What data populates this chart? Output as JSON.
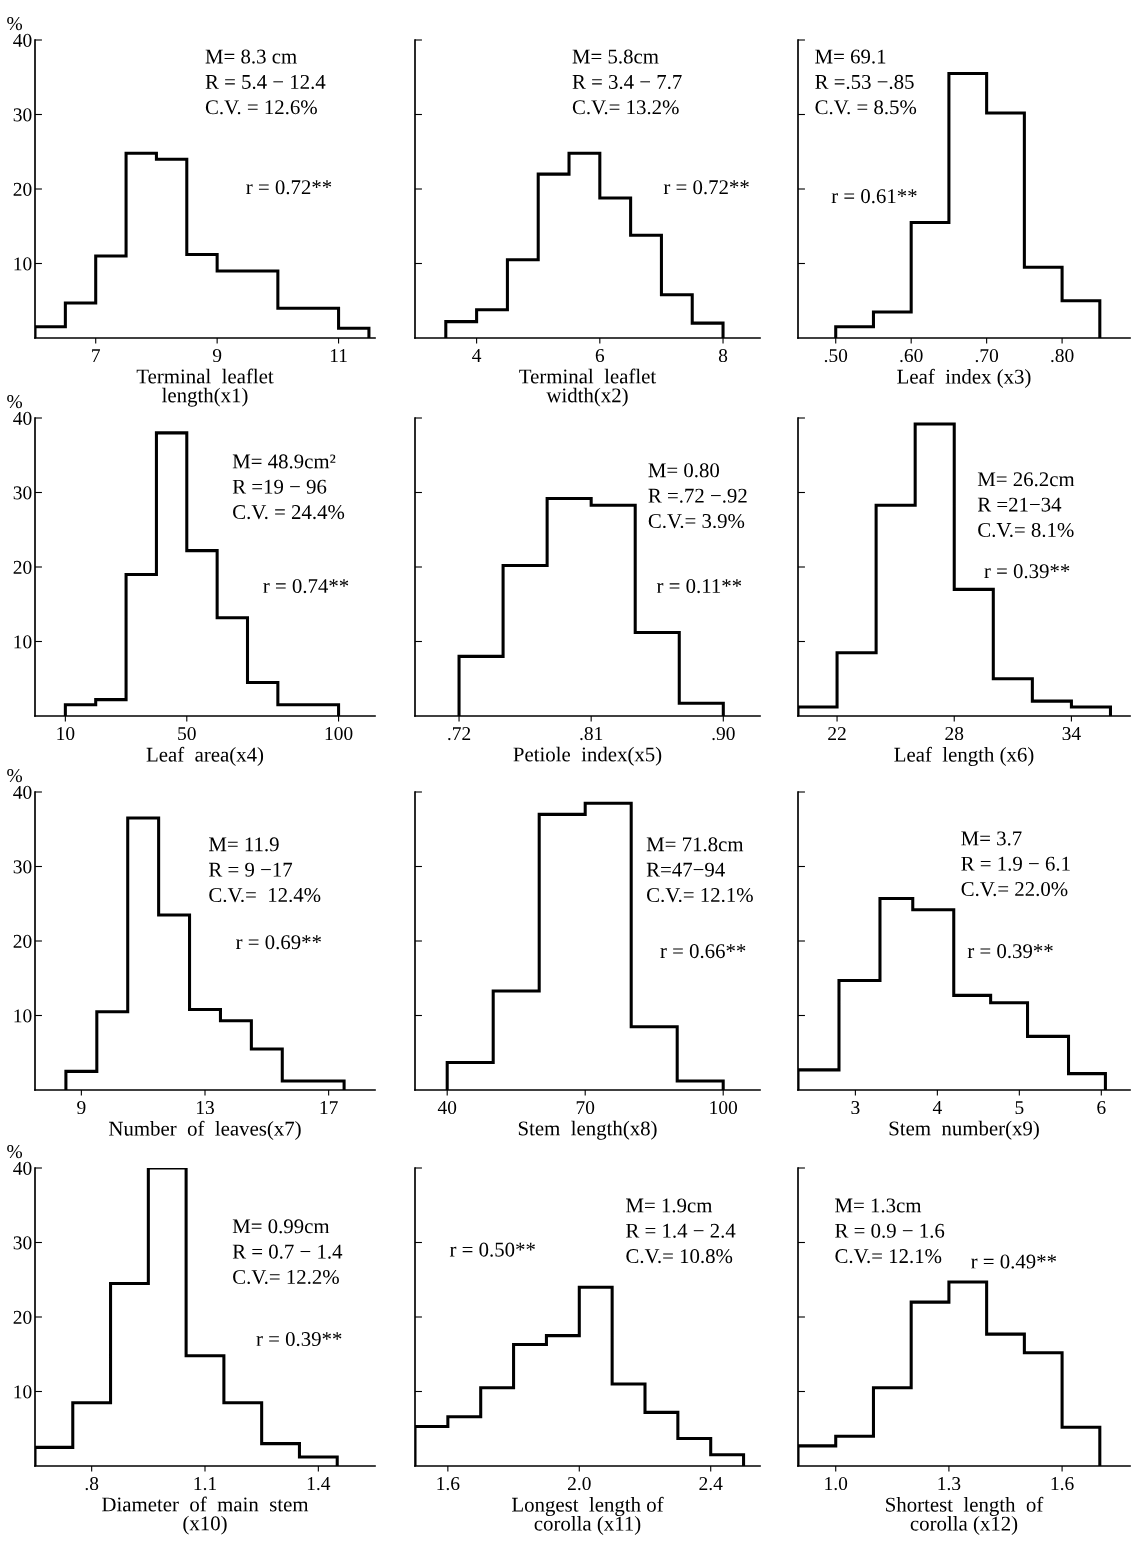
{
  "chart_data": [
    {
      "type": "histogram",
      "xlabel": "Terminal  leaflet\nlength(x1)",
      "ylabel": "%",
      "bins": [
        6,
        6.5,
        7,
        7.5,
        8,
        8.5,
        9,
        10,
        11,
        11.5
      ],
      "values": [
        1.5,
        4.7,
        11,
        24.8,
        24,
        11.2,
        9,
        4,
        1.3
      ],
      "color": "#000000",
      "xlim": [
        6,
        11.6
      ],
      "xticks": [
        7,
        9,
        11
      ],
      "ylim": [
        0,
        40
      ],
      "yticks": [
        10,
        20,
        30,
        40
      ],
      "annotations": [
        "M= 8.3 cm",
        "R = 5.4 − 12.4",
        "C.V. = 12.6%",
        "r = 0.72**"
      ]
    },
    {
      "type": "histogram",
      "xlabel": "Terminal  leaflet\nwidth(x2)",
      "bins": [
        3.5,
        4,
        4.5,
        5,
        5.5,
        6,
        6.5,
        7,
        7.5,
        8
      ],
      "values": [
        2.2,
        3.8,
        10.5,
        22,
        24.8,
        18.8,
        13.8,
        5.8,
        2
      ],
      "color": "#000000",
      "xlim": [
        3,
        8.6
      ],
      "xticks": [
        4,
        6,
        8
      ],
      "ylim": [
        0,
        40
      ],
      "yticks": [
        {
          "value": 10,
          "label": null
        },
        {
          "value": 20,
          "label": null
        },
        {
          "value": 30,
          "label": null
        },
        {
          "value": 40,
          "label": null
        }
      ],
      "tick_labels": "x",
      "annotations": [
        "M= 5.8cm",
        "R = 3.4 − 7.7",
        "C.V.= 13.2%",
        "r = 0.72**"
      ]
    },
    {
      "type": "histogram",
      "xlabel": "Leaf  index (x3)",
      "bins": [
        0.5,
        0.55,
        0.6,
        0.65,
        0.7,
        0.75,
        0.8,
        0.85
      ],
      "values": [
        1.5,
        3.5,
        15.5,
        35.5,
        30.2,
        9.5,
        5
      ],
      "color": "#000000",
      "xlim": [
        0.45,
        0.89
      ],
      "xticks": [
        {
          "value": 0.5,
          "label": ".50"
        },
        {
          "value": 0.6,
          "label": ".60"
        },
        {
          "value": 0.7,
          "label": ".70"
        },
        {
          "value": 0.8,
          "label": ".80"
        }
      ],
      "ylim": [
        0,
        40
      ],
      "yticks": [
        {
          "value": 10,
          "label": null
        },
        {
          "value": 20,
          "label": null
        },
        {
          "value": 30,
          "label": null
        },
        {
          "value": 40,
          "label": null
        }
      ],
      "tick_labels": "x",
      "annotations": [
        "M= 69.1",
        "R =.53 −.85",
        "C.V. = 8.5%",
        "r = 0.61**"
      ]
    },
    {
      "type": "histogram",
      "xlabel": "Leaf  area(x4)",
      "ylabel": "%",
      "bins": [
        10,
        20,
        30,
        40,
        50,
        60,
        70,
        80,
        100
      ],
      "values": [
        1.5,
        2.2,
        19,
        38,
        22.2,
        13.2,
        4.5,
        1.5
      ],
      "color": "#000000",
      "xlim": [
        0,
        112
      ],
      "xticks": [
        10,
        50,
        100
      ],
      "ylim": [
        0,
        40
      ],
      "yticks": [
        10,
        20,
        30,
        40
      ],
      "annotations": [
        "M= 48.9cm²",
        "R =19 − 96",
        "C.V. = 24.4%",
        "r = 0.74**"
      ]
    },
    {
      "type": "histogram",
      "xlabel": "Petiole  index(x5)",
      "bins": [
        0.72,
        0.75,
        0.78,
        0.81,
        0.84,
        0.87,
        0.9
      ],
      "values": [
        8,
        20.2,
        29.2,
        28.3,
        11.2,
        1.7
      ],
      "color": "#000000",
      "xlim": [
        0.69,
        0.925
      ],
      "xticks": [
        {
          "value": 0.72,
          "label": ".72"
        },
        {
          "value": 0.81,
          "label": ".81"
        },
        {
          "value": 0.9,
          "label": ".90"
        }
      ],
      "ylim": [
        0,
        40
      ],
      "yticks": [
        {
          "value": 10,
          "label": null
        },
        {
          "value": 20,
          "label": null
        },
        {
          "value": 30,
          "label": null
        },
        {
          "value": 40,
          "label": null
        }
      ],
      "tick_labels": "x",
      "annotations": [
        "M= 0.80",
        "R =.72 −.92",
        "C.V.= 3.9%",
        "r = 0.11**"
      ]
    },
    {
      "type": "histogram",
      "xlabel": "Leaf  length (x6)",
      "bins": [
        20,
        22,
        24,
        26,
        28,
        30,
        32,
        34,
        36
      ],
      "values": [
        1.2,
        8.5,
        28.3,
        39.2,
        17,
        5,
        2,
        1.2
      ],
      "color": "#000000",
      "xlim": [
        20,
        37
      ],
      "xticks": [
        22,
        28,
        34
      ],
      "ylim": [
        0,
        40
      ],
      "yticks": [
        {
          "value": 10,
          "label": null
        },
        {
          "value": 20,
          "label": null
        },
        {
          "value": 30,
          "label": null
        },
        {
          "value": 40,
          "label": null
        }
      ],
      "tick_labels": "x",
      "annotations": [
        "M= 26.2cm",
        "R =21−34",
        "C.V.= 8.1%",
        "r = 0.39**"
      ]
    },
    {
      "type": "histogram",
      "xlabel": "Number  of  leaves(x7)",
      "ylabel": "%",
      "bins": [
        8.5,
        9.5,
        10.5,
        11.5,
        12.5,
        13.5,
        14.5,
        15.5,
        17.5
      ],
      "values": [
        2.5,
        10.5,
        36.5,
        23.5,
        10.8,
        9.3,
        5.5,
        1.2
      ],
      "color": "#000000",
      "xlim": [
        7.5,
        18.5
      ],
      "xticks": [
        9,
        13,
        17
      ],
      "ylim": [
        0,
        40
      ],
      "yticks": [
        10,
        20,
        30,
        40
      ],
      "annotations": [
        "M= 11.9",
        "R = 9 −17",
        "C.V.=  12.4%",
        "r = 0.69**"
      ]
    },
    {
      "type": "histogram",
      "xlabel": "Stem  length(x8)",
      "bins": [
        40,
        50,
        60,
        70,
        80,
        90,
        100
      ],
      "values": [
        3.7,
        13.3,
        37,
        38.5,
        8.5,
        1.2
      ],
      "color": "#000000",
      "xlim": [
        33,
        108
      ],
      "xticks": [
        40,
        70,
        100
      ],
      "ylim": [
        0,
        40
      ],
      "yticks": [
        {
          "value": 10,
          "label": null
        },
        {
          "value": 20,
          "label": null
        },
        {
          "value": 30,
          "label": null
        },
        {
          "value": 40,
          "label": null
        }
      ],
      "tick_labels": "x",
      "annotations": [
        "M= 71.8cm",
        "R=47−94",
        "C.V.= 12.1%",
        "r = 0.66**"
      ]
    },
    {
      "type": "histogram",
      "xlabel": "Stem  number(x9)",
      "bins": [
        2.3,
        2.8,
        3.3,
        3.7,
        4.2,
        4.65,
        5.1,
        5.6,
        6.05
      ],
      "values": [
        2.7,
        14.7,
        25.7,
        24.2,
        12.7,
        11.7,
        7.2,
        2.2
      ],
      "color": "#000000",
      "xlim": [
        2.3,
        6.35
      ],
      "xticks": [
        3,
        4,
        5,
        6
      ],
      "ylim": [
        0,
        40
      ],
      "yticks": [
        {
          "value": 10,
          "label": null
        },
        {
          "value": 20,
          "label": null
        },
        {
          "value": 30,
          "label": null
        },
        {
          "value": 40,
          "label": null
        }
      ],
      "tick_labels": "x",
      "annotations": [
        "M= 3.7",
        "R = 1.9 − 6.1",
        "C.V.= 22.0%",
        "r = 0.39**"
      ]
    },
    {
      "type": "histogram",
      "xlabel": "Diameter  of  main  stem\n(x10)",
      "ylabel": "%",
      "bins": [
        0.65,
        0.75,
        0.85,
        0.95,
        1.05,
        1.15,
        1.25,
        1.35,
        1.45
      ],
      "values": [
        2.5,
        8.5,
        24.5,
        40,
        14.8,
        8.5,
        3,
        1.2
      ],
      "color": "#000000",
      "xlim": [
        0.65,
        1.55
      ],
      "xticks": [
        {
          "value": 0.8,
          "label": ".8"
        },
        1.1,
        1.4
      ],
      "ylim": [
        0,
        40
      ],
      "yticks": [
        10,
        20,
        30,
        40
      ],
      "annotations": [
        "M= 0.99cm",
        "R = 0.7 − 1.4",
        "C.V.= 12.2%",
        "r = 0.39**"
      ]
    },
    {
      "type": "histogram",
      "xlabel": "Longest  length of\ncorolla (x11)",
      "bins": [
        1.5,
        1.6,
        1.7,
        1.8,
        1.9,
        2.0,
        2.1,
        2.2,
        2.3,
        2.4,
        2.5
      ],
      "values": [
        5.3,
        6.6,
        10.5,
        16.3,
        17.5,
        24,
        11,
        7.2,
        3.7,
        1.5
      ],
      "color": "#000000",
      "xlim": [
        1.5,
        2.55
      ],
      "xticks": [
        1.6,
        {
          "value": 2.0,
          "label": "2.0"
        },
        2.4
      ],
      "ylim": [
        0,
        40
      ],
      "yticks": [
        {
          "value": 10,
          "label": null
        },
        {
          "value": 20,
          "label": null
        },
        {
          "value": 30,
          "label": null
        },
        {
          "value": 40,
          "label": null
        }
      ],
      "tick_labels": "x",
      "annotations": [
        "M= 1.9cm",
        "R = 1.4 − 2.4",
        "C.V.= 10.8%",
        "r = 0.50**"
      ]
    },
    {
      "type": "histogram",
      "xlabel": "Shortest  length  of\ncorolla (x12)",
      "bins": [
        0.9,
        1.0,
        1.1,
        1.2,
        1.3,
        1.4,
        1.5,
        1.6,
        1.7
      ],
      "values": [
        2.7,
        4,
        10.5,
        22,
        24.7,
        17.7,
        15.2,
        5.2
      ],
      "color": "#000000",
      "xlim": [
        0.9,
        1.78
      ],
      "xticks": [
        {
          "value": 1.0,
          "label": "1.0"
        },
        1.3,
        1.6
      ],
      "ylim": [
        0,
        40
      ],
      "yticks": [
        {
          "value": 10,
          "label": null
        },
        {
          "value": 20,
          "label": null
        },
        {
          "value": 30,
          "label": null
        },
        {
          "value": 40,
          "label": null
        }
      ],
      "tick_labels": "x",
      "annotations": [
        "M= 1.3cm",
        "R = 0.9 − 1.6",
        "C.V.= 12.1%",
        "r = 0.49**"
      ]
    }
  ]
}
